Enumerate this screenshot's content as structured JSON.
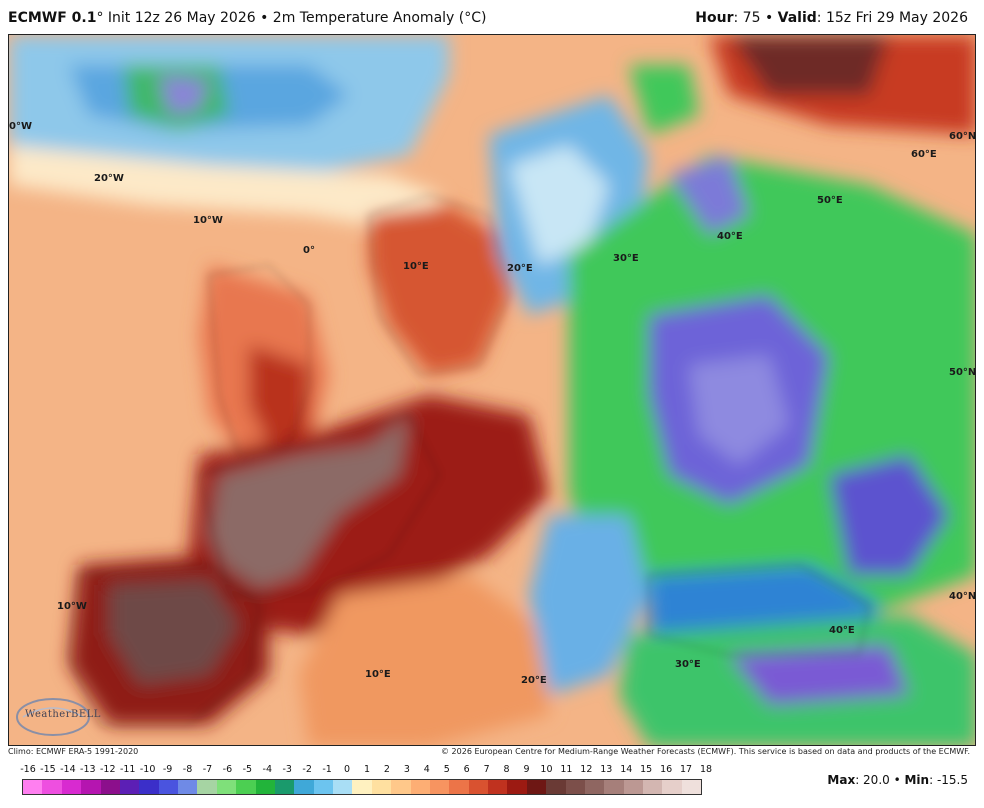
{
  "header": {
    "model": "ECMWF 0.1",
    "degree": "°",
    "init": " Init 12z 26 May 2026 • 2m Temperature Anomaly (°C)",
    "hour_label": "Hour",
    "hour_value": ": 75 • ",
    "valid_label": "Valid",
    "valid_value": ": 15z Fri 29 May 2026"
  },
  "map": {
    "labels": [
      {
        "name": "lon-0w-label",
        "text": "0°W"
      },
      {
        "name": "lon-20w-label",
        "text": "20°W"
      },
      {
        "name": "lon-10w-top-label",
        "text": "10°W"
      },
      {
        "name": "lon-0-label",
        "text": "0°"
      },
      {
        "name": "lon-10e-north-label",
        "text": "10°E"
      },
      {
        "name": "lon-20e-north-label",
        "text": "20°E"
      },
      {
        "name": "lon-30e-north-label",
        "text": "30°E"
      },
      {
        "name": "lon-40e-north-label",
        "text": "40°E"
      },
      {
        "name": "lon-50e-label",
        "text": "50°E"
      },
      {
        "name": "lon-60e-label",
        "text": "60°E"
      },
      {
        "name": "lat-60n-label",
        "text": "60°N"
      },
      {
        "name": "lat-50n-label",
        "text": "50°N"
      },
      {
        "name": "lat-40n-label",
        "text": "40°N"
      },
      {
        "name": "lon-10w-bottom-label",
        "text": "10°W"
      },
      {
        "name": "lon-10e-south-label",
        "text": "10°E"
      },
      {
        "name": "lon-20e-south-label",
        "text": "20°E"
      },
      {
        "name": "lon-30e-south-label",
        "text": "30°E"
      },
      {
        "name": "lon-40e-south-label",
        "text": "40°E"
      }
    ],
    "logo_text": "WeatherBELL"
  },
  "footer": {
    "climo": "Climo: ECMWF ERA-5 1991-2020",
    "copyright": "© 2026 European Centre for Medium-Range Weather Forecasts (ECMWF). This service is based on data and products of the ECMWF."
  },
  "colorbar": {
    "ticks": [
      "-16",
      "-15",
      "-14",
      "-13",
      "-12",
      "-11",
      "-10",
      "-9",
      "-8",
      "-7",
      "-6",
      "-5",
      "-4",
      "-3",
      "-2",
      "-1",
      "0",
      "1",
      "2",
      "3",
      "4",
      "5",
      "6",
      "7",
      "8",
      "9",
      "10",
      "11",
      "12",
      "13",
      "14",
      "15",
      "16",
      "17",
      "18"
    ],
    "colors": [
      "#ff7ff0",
      "#ee4fe0",
      "#d82ad0",
      "#b515b0",
      "#8c0f8c",
      "#5c1fb5",
      "#3b2fc9",
      "#4a54df",
      "#6f8ae6",
      "#a6d4a3",
      "#7fe07a",
      "#4ccf52",
      "#22b43a",
      "#1a9a6c",
      "#3fa8d8",
      "#6cc4ef",
      "#a9def5",
      "#fff1c0",
      "#ffe0a0",
      "#ffc88a",
      "#fdae74",
      "#f79460",
      "#ec7448",
      "#d95230",
      "#c0321f",
      "#9c1a12",
      "#6e1714",
      "#6a3a35",
      "#7c4f4a",
      "#8f6661",
      "#a67f7a",
      "#bc9893",
      "#d3b6b1",
      "#e6cfca",
      "#efe0dc"
    ]
  },
  "stats": {
    "max_label": "Max",
    "max_value": ": 20.0 • ",
    "min_label": "Min",
    "min_value": ": -15.5"
  }
}
